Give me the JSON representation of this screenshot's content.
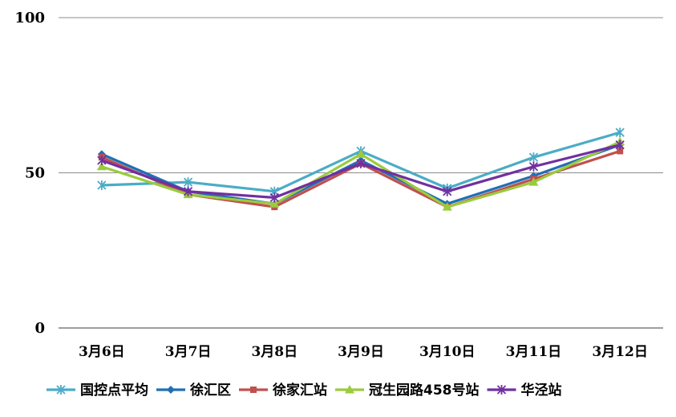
{
  "chart_data": {
    "type": "line",
    "title": "",
    "xlabel": "",
    "ylabel": "",
    "categories": [
      "3月6日",
      "3月7日",
      "3月8日",
      "3月9日",
      "3月10日",
      "3月11日",
      "3月12日"
    ],
    "ylim": [
      0,
      100
    ],
    "yticks": [
      0,
      50,
      100
    ],
    "grid": true,
    "legend_position": "bottom",
    "series": [
      {
        "name": "国控点平均",
        "color": "#4BACC6",
        "marker": "asterisk",
        "values": [
          46,
          47,
          44,
          57,
          45,
          55,
          63
        ]
      },
      {
        "name": "徐汇区",
        "color": "#1F6FB5",
        "marker": "diamond",
        "values": [
          56,
          44,
          40,
          54,
          40,
          49,
          59
        ]
      },
      {
        "name": "徐家汇站",
        "color": "#C0504D",
        "marker": "square",
        "values": [
          55,
          43,
          39,
          53,
          39,
          48,
          57
        ]
      },
      {
        "name": "冠生园路458号站",
        "color": "#9BCB3C",
        "marker": "triangle",
        "values": [
          52,
          43,
          40,
          56,
          39,
          47,
          60
        ]
      },
      {
        "name": "华泾站",
        "color": "#7030A0",
        "marker": "asterisk",
        "values": [
          54,
          44,
          42,
          53,
          44,
          52,
          59
        ]
      }
    ]
  }
}
